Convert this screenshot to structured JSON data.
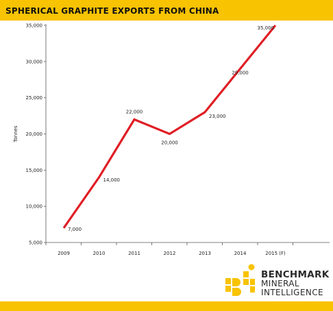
{
  "header": {
    "title": "SPHERICAL GRAPHITE EXPORTS FROM CHINA"
  },
  "colors": {
    "accent": "#f8c300",
    "line": "#e01e25",
    "axis": "#555555"
  },
  "chart_data": {
    "type": "line",
    "title": "SPHERICAL GRAPHITE EXPORTS FROM CHINA",
    "xlabel": "",
    "ylabel": "Tonnes",
    "categories": [
      "2009",
      "2010",
      "2011",
      "2012",
      "2013",
      "2014",
      "2015 (F)"
    ],
    "series": [
      {
        "values": [
          7000,
          14000,
          22000,
          20000,
          23000,
          29000,
          35000
        ]
      }
    ],
    "data_labels": [
      "7,000",
      "14,000",
      "22,000",
      "20,000",
      "23,000",
      "29,000",
      "35,000"
    ],
    "yticks": [
      5000,
      10000,
      15000,
      20000,
      25000,
      30000,
      35000
    ],
    "ytick_labels": [
      "5,000",
      "10,000",
      "15,000",
      "20,000",
      "25,000",
      "30,000",
      "35,000"
    ],
    "ylim": [
      5000,
      35000
    ],
    "grid": false,
    "legend": "none"
  },
  "logo": {
    "line1": "BENCHMARK",
    "line2": "MINERAL",
    "line3": "INTELLIGENCE",
    "icon": "benchmark-logo-mark"
  }
}
